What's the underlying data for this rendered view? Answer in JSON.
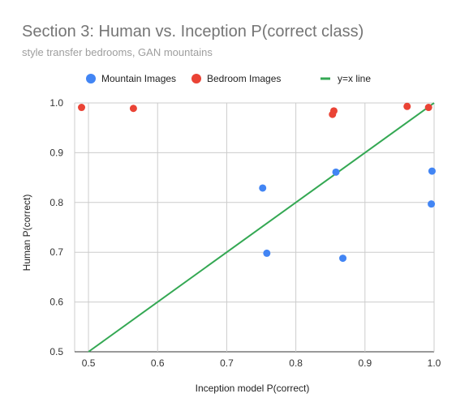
{
  "chart_data": {
    "type": "scatter",
    "title": "Section 3: Human vs. Inception P(correct class)",
    "subtitle": "style transfer bedrooms, GAN mountains",
    "xlabel": "Inception model P(correct)",
    "ylabel": "Human P(correct)",
    "xlim": [
      0.48,
      1.0
    ],
    "ylim": [
      0.5,
      1.0
    ],
    "xticks": [
      0.5,
      0.6,
      0.7,
      0.8,
      0.9,
      1.0
    ],
    "xtick_labels": [
      "0.5",
      "0.6",
      "0.7",
      "0.8",
      "0.9",
      "1.0"
    ],
    "yticks": [
      0.5,
      0.6,
      0.7,
      0.8,
      0.9,
      1.0
    ],
    "ytick_labels": [
      "0.5",
      "0.6",
      "0.7",
      "0.8",
      "0.9",
      "1.0"
    ],
    "grid": true,
    "legend_position": "top",
    "series": [
      {
        "name": "Mountain Images",
        "kind": "points",
        "color": "#4285f4",
        "points": [
          {
            "x": 0.752,
            "y": 0.829
          },
          {
            "x": 0.758,
            "y": 0.698
          },
          {
            "x": 0.858,
            "y": 0.861
          },
          {
            "x": 0.868,
            "y": 0.688
          },
          {
            "x": 0.997,
            "y": 0.863
          },
          {
            "x": 0.996,
            "y": 0.797
          }
        ]
      },
      {
        "name": "Bedroom Images",
        "kind": "points",
        "color": "#ea4335",
        "points": [
          {
            "x": 0.49,
            "y": 0.991
          },
          {
            "x": 0.565,
            "y": 0.989
          },
          {
            "x": 0.855,
            "y": 0.984
          },
          {
            "x": 0.853,
            "y": 0.977
          },
          {
            "x": 0.961,
            "y": 0.993
          },
          {
            "x": 0.992,
            "y": 0.991
          }
        ]
      },
      {
        "name": "y=x line",
        "kind": "line",
        "color": "#34a853",
        "points": [
          {
            "x": 0.5,
            "y": 0.5
          },
          {
            "x": 1.0,
            "y": 1.0
          }
        ]
      }
    ]
  }
}
